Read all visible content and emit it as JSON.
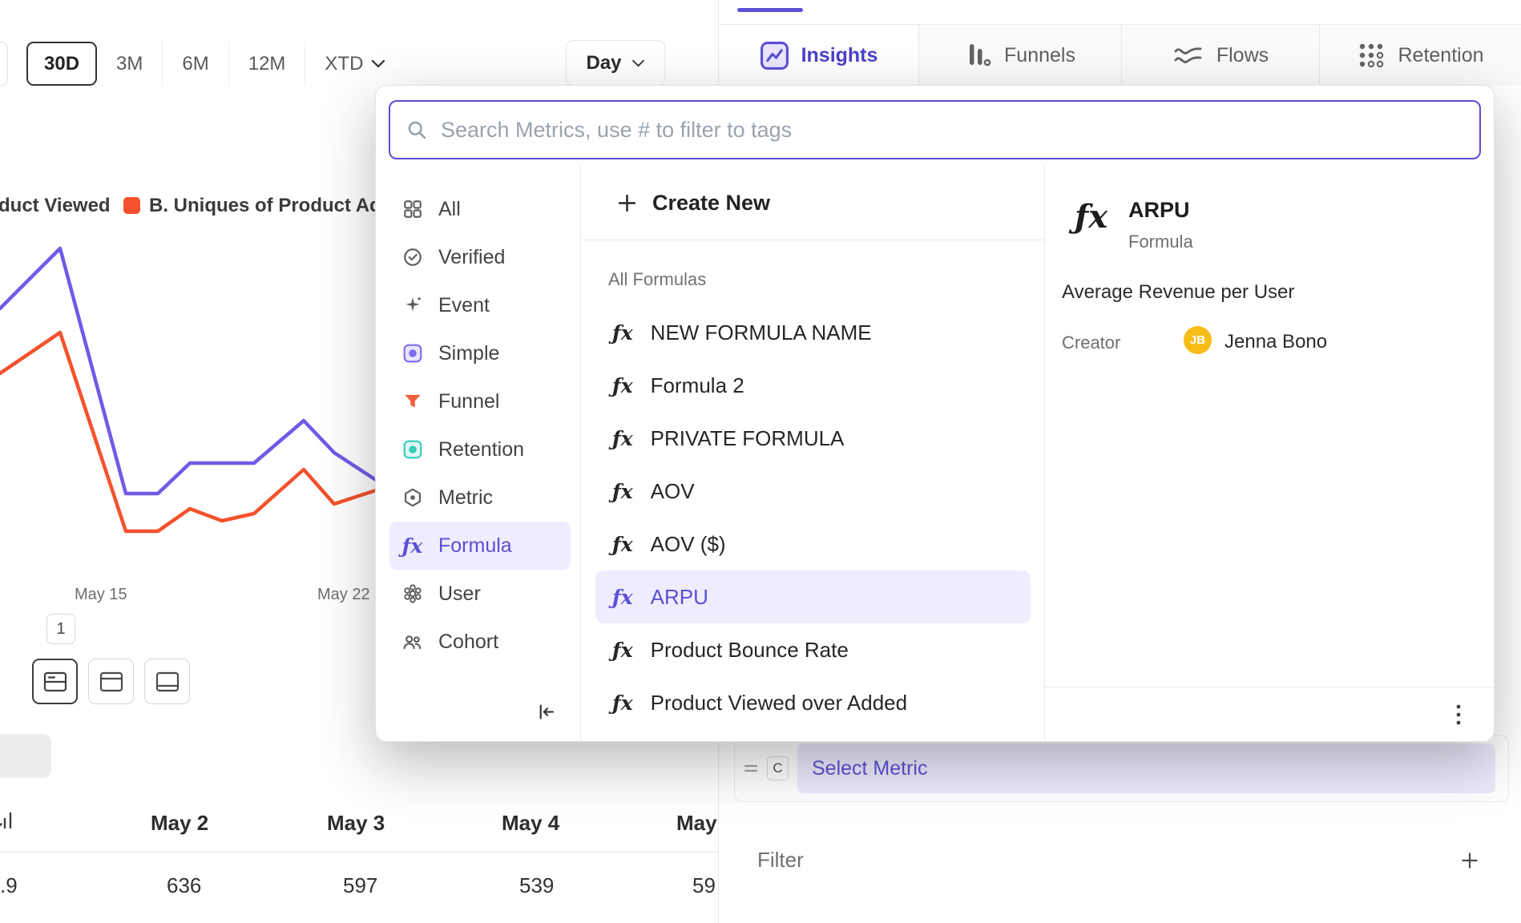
{
  "colors": {
    "accent": "#5b4fd6",
    "accent_light": "#efecfe",
    "series_a": "#6e5be8",
    "series_b": "#f4512c",
    "avatar": "#f6bd17"
  },
  "toolbar": {
    "ranges": [
      "30D",
      "3M",
      "6M",
      "12M",
      "XTD"
    ],
    "selected_range": "30D",
    "granularity": "Day"
  },
  "tabs": {
    "insights": "Insights",
    "funnels": "Funnels",
    "flows": "Flows",
    "retention": "Retention",
    "active": "Insights"
  },
  "legend": {
    "series_a_partial": "duct Viewed",
    "series_b": "B. Uniques of Product Add"
  },
  "chart_data": {
    "type": "line",
    "x_ticks": [
      "May 15",
      "May 22"
    ],
    "grid": false,
    "series": [
      {
        "name": "duct Viewed",
        "color": "#6e5be8",
        "points": [
          [
            0,
            105
          ],
          [
            75,
            30
          ],
          [
            157,
            336
          ],
          [
            197,
            336
          ],
          [
            237,
            298
          ],
          [
            317,
            298
          ],
          [
            379,
            245
          ],
          [
            417,
            285
          ],
          [
            472,
            321
          ]
        ]
      },
      {
        "name": "B. Uniques of Product Add",
        "color": "#f4512c",
        "points": [
          [
            0,
            186
          ],
          [
            75,
            135
          ],
          [
            157,
            383
          ],
          [
            197,
            383
          ],
          [
            237,
            355
          ],
          [
            277,
            370
          ],
          [
            317,
            361
          ],
          [
            379,
            306
          ],
          [
            417,
            349
          ],
          [
            472,
            331
          ]
        ]
      }
    ]
  },
  "pagination": {
    "page": "1"
  },
  "table": {
    "headers": [
      "May 2",
      "May 3",
      "May 4",
      "May"
    ],
    "values": [
      "636",
      "597",
      "539",
      "59"
    ],
    "left_partial": ".9"
  },
  "metric_builder": {
    "key_badge": "C",
    "select_label": "Select Metric",
    "filter_label": "Filter"
  },
  "modal": {
    "search_placeholder": "Search Metrics, use # to filter to tags",
    "fx_glyph": "ƒx",
    "categories": [
      "All",
      "Verified",
      "Event",
      "Simple",
      "Funnel",
      "Retention",
      "Metric",
      "Formula",
      "User",
      "Cohort"
    ],
    "selected_category": "Formula",
    "create_new_label": "Create New",
    "section_label": "All Formulas",
    "formulas": [
      "NEW FORMULA NAME",
      "Formula 2",
      "PRIVATE FORMULA",
      "AOV",
      "AOV ($)",
      "ARPU",
      "Product Bounce Rate",
      "Product Viewed over Added"
    ],
    "selected_formula": "ARPU",
    "details": {
      "title": "ARPU",
      "type": "Formula",
      "description": "Average Revenue per User",
      "creator_label": "Creator",
      "creator_initials": "JB",
      "creator_name": "Jenna Bono"
    }
  }
}
